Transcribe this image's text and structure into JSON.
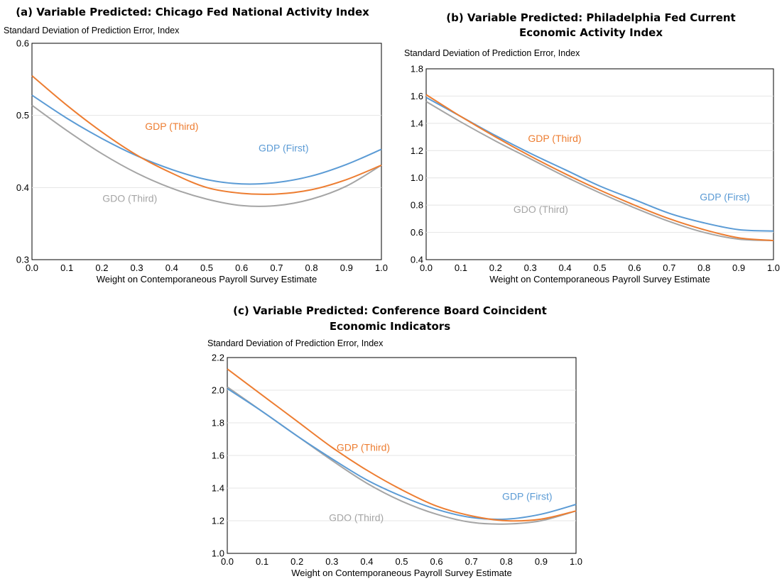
{
  "colors": {
    "gdp_first": "#5b9bd5",
    "gdp_third": "#ed7d31",
    "gdo_third": "#a5a5a5"
  },
  "chart_data": [
    {
      "type": "line",
      "title_lines": [
        "(a) Variable Predicted: Chicago Fed National Activity Index"
      ],
      "ylabel": "Standard Deviation of Prediction Error, Index",
      "xlabel": "Weight on Contemporaneous Payroll Survey Estimate",
      "xlim": [
        0,
        1
      ],
      "ylim": [
        0.3,
        0.6
      ],
      "x_ticks": [
        "0.0",
        "0.1",
        "0.2",
        "0.3",
        "0.4",
        "0.5",
        "0.6",
        "0.7",
        "0.8",
        "0.9",
        "1.0"
      ],
      "y_ticks": [
        "0.3",
        "0.4",
        "0.5",
        "0.6"
      ],
      "grid": true,
      "x": [
        0,
        0.1,
        0.2,
        0.3,
        0.4,
        0.5,
        0.6,
        0.7,
        0.8,
        0.9,
        1.0
      ],
      "series": [
        {
          "name": "GDP (First)",
          "color_key": "gdp_first",
          "values": [
            0.528,
            0.496,
            0.468,
            0.444,
            0.425,
            0.411,
            0.405,
            0.407,
            0.416,
            0.432,
            0.453
          ],
          "label_at": [
            0.72,
            0.455
          ]
        },
        {
          "name": "GDP (Third)",
          "color_key": "gdp_third",
          "values": [
            0.555,
            0.514,
            0.477,
            0.445,
            0.42,
            0.4,
            0.392,
            0.391,
            0.397,
            0.411,
            0.431
          ],
          "label_at": [
            0.4,
            0.485
          ]
        },
        {
          "name": "GDO (Third)",
          "color_key": "gdo_third",
          "values": [
            0.514,
            0.479,
            0.447,
            0.42,
            0.399,
            0.384,
            0.375,
            0.375,
            0.384,
            0.402,
            0.431
          ],
          "label_at": [
            0.28,
            0.385
          ]
        }
      ]
    },
    {
      "type": "line",
      "title_lines": [
        "(b) Variable Predicted: Philadelphia Fed Current",
        "Economic Activity Index"
      ],
      "ylabel": "Standard Deviation of Prediction Error, Index",
      "xlabel": "Weight on Contemporaneous Payroll Survey Estimate",
      "xlim": [
        0,
        1
      ],
      "ylim": [
        0.4,
        1.8
      ],
      "x_ticks": [
        "0.0",
        "0.1",
        "0.2",
        "0.3",
        "0.4",
        "0.5",
        "0.6",
        "0.7",
        "0.8",
        "0.9",
        "1.0"
      ],
      "y_ticks": [
        "0.4",
        "0.6",
        "0.8",
        "1.0",
        "1.2",
        "1.4",
        "1.6",
        "1.8"
      ],
      "grid": true,
      "x": [
        0,
        0.1,
        0.2,
        0.3,
        0.4,
        0.5,
        0.6,
        0.7,
        0.8,
        0.9,
        1.0
      ],
      "series": [
        {
          "name": "GDP (First)",
          "color_key": "gdp_first",
          "values": [
            1.59,
            1.45,
            1.31,
            1.18,
            1.06,
            0.94,
            0.84,
            0.74,
            0.67,
            0.62,
            0.61
          ],
          "label_at": [
            0.86,
            0.86
          ]
        },
        {
          "name": "GDP (Third)",
          "color_key": "gdp_third",
          "values": [
            1.61,
            1.45,
            1.3,
            1.16,
            1.03,
            0.91,
            0.8,
            0.7,
            0.62,
            0.56,
            0.54
          ],
          "label_at": [
            0.37,
            1.29
          ]
        },
        {
          "name": "GDO (Third)",
          "color_key": "gdo_third",
          "values": [
            1.56,
            1.41,
            1.27,
            1.14,
            1.01,
            0.89,
            0.78,
            0.68,
            0.6,
            0.55,
            0.54
          ],
          "label_at": [
            0.33,
            0.77
          ]
        }
      ]
    },
    {
      "type": "line",
      "title_lines": [
        "(c) Variable Predicted: Conference Board Coincident",
        "Economic Indicators"
      ],
      "ylabel": "Standard Deviation of Prediction Error, Index",
      "xlabel": "Weight on Contemporaneous Payroll Survey Estimate",
      "xlim": [
        0,
        1
      ],
      "ylim": [
        1.0,
        2.2
      ],
      "x_ticks": [
        "0.0",
        "0.1",
        "0.2",
        "0.3",
        "0.4",
        "0.5",
        "0.6",
        "0.7",
        "0.8",
        "0.9",
        "1.0"
      ],
      "y_ticks": [
        "1.0",
        "1.2",
        "1.4",
        "1.6",
        "1.8",
        "2.0",
        "2.2"
      ],
      "grid": true,
      "x": [
        0,
        0.1,
        0.2,
        0.3,
        0.4,
        0.5,
        0.6,
        0.7,
        0.8,
        0.9,
        1.0
      ],
      "series": [
        {
          "name": "GDP (First)",
          "color_key": "gdp_first",
          "values": [
            2.01,
            1.87,
            1.72,
            1.58,
            1.45,
            1.35,
            1.27,
            1.22,
            1.21,
            1.24,
            1.3
          ],
          "label_at": [
            0.86,
            1.35
          ]
        },
        {
          "name": "GDP (Third)",
          "color_key": "gdp_third",
          "values": [
            2.13,
            1.97,
            1.81,
            1.65,
            1.51,
            1.39,
            1.29,
            1.23,
            1.2,
            1.21,
            1.26
          ],
          "label_at": [
            0.39,
            1.65
          ]
        },
        {
          "name": "GDO (Third)",
          "color_key": "gdo_third",
          "values": [
            2.02,
            1.87,
            1.72,
            1.57,
            1.43,
            1.32,
            1.24,
            1.19,
            1.18,
            1.2,
            1.26
          ],
          "label_at": [
            0.37,
            1.22
          ]
        }
      ]
    }
  ]
}
